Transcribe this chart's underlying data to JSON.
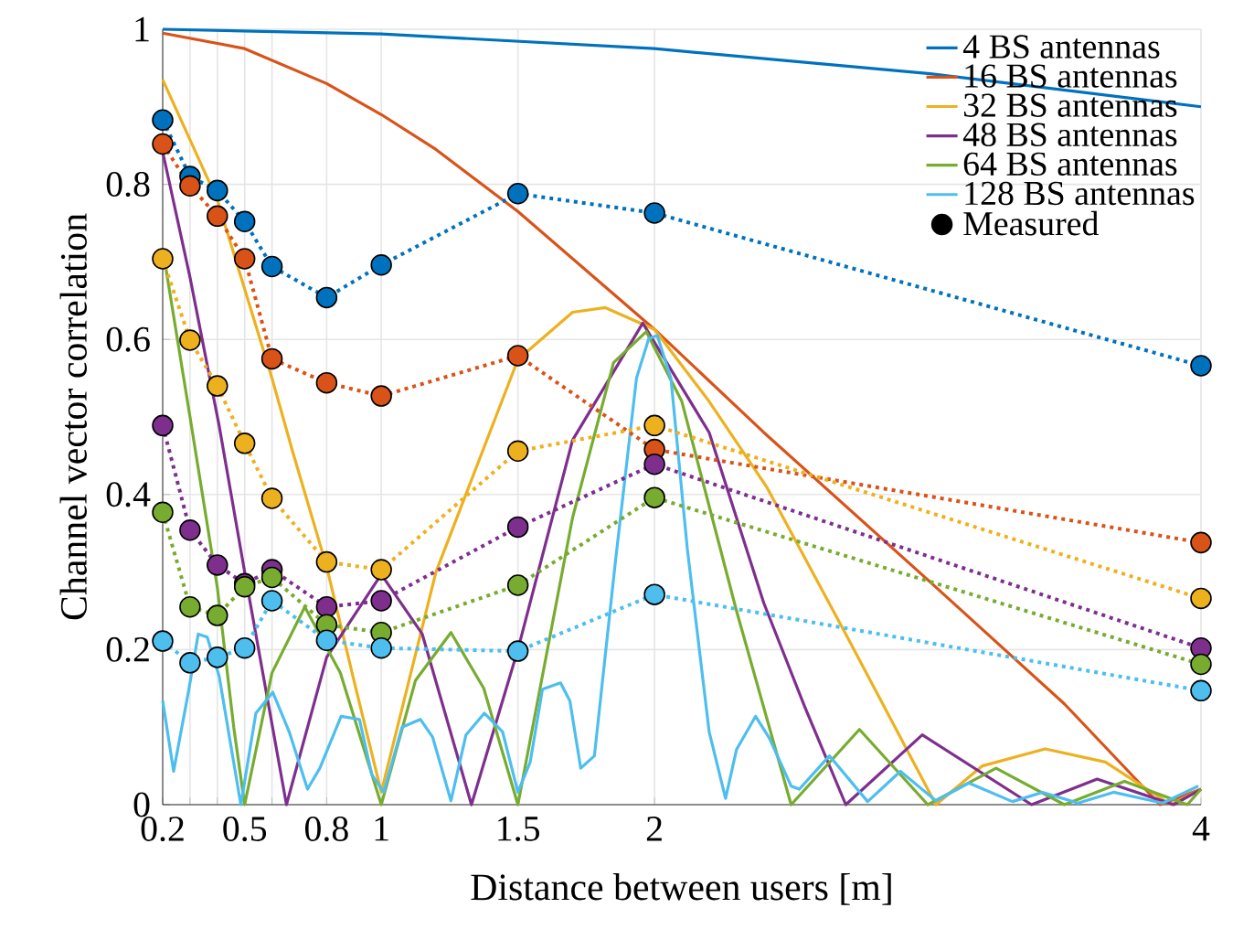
{
  "chart_data": {
    "type": "line",
    "xlabel": "Distance between users [m]",
    "ylabel": "Channel vector correlation",
    "xlim": [
      0.2,
      4
    ],
    "ylim": [
      0,
      1
    ],
    "xticks": [
      0.2,
      {
        "value": 0.3,
        "label": null
      },
      {
        "value": 0.4,
        "label": null
      },
      0.5,
      {
        "value": 0.6,
        "label": null
      },
      0.8,
      1,
      1.5,
      2,
      4
    ],
    "yticks": [
      0,
      0.2,
      0.4,
      0.6,
      0.8,
      1
    ],
    "grid": true,
    "legend": "top right",
    "series": [
      {
        "name": "4 BS antennas",
        "color": "#0072bd",
        "line_style": "solid",
        "marker": "none",
        "x": [
          0.2,
          1,
          2,
          3,
          4
        ],
        "values": [
          1.0,
          0.994,
          0.975,
          0.943,
          0.9
        ]
      },
      {
        "name": "16 BS antennas",
        "color": "#d95319",
        "line_style": "solid",
        "marker": "none",
        "x": [
          0.2,
          0.5,
          0.8,
          1.0,
          1.2,
          1.5,
          2,
          2.4,
          3,
          3.5,
          3.85,
          4
        ],
        "values": [
          0.995,
          0.975,
          0.93,
          0.89,
          0.845,
          0.765,
          0.613,
          0.48,
          0.29,
          0.13,
          0.0,
          0.02
        ]
      },
      {
        "name": "32 BS antennas",
        "color": "#edb120",
        "line_style": "solid",
        "marker": "none",
        "x": [
          0.2,
          0.4,
          0.6,
          0.675,
          0.8,
          0.9,
          1.0,
          1.2,
          1.5,
          1.7,
          1.82,
          2.0,
          2.2,
          2.41,
          2.7,
          3.03,
          3.2,
          3.43,
          3.65,
          3.89,
          4
        ],
        "values": [
          0.935,
          0.78,
          0.55,
          0.456,
          0.307,
          0.16,
          0.016,
          0.3,
          0.574,
          0.635,
          0.641,
          0.613,
          0.52,
          0.41,
          0.22,
          0.0,
          0.05,
          0.072,
          0.055,
          0.0,
          0.02
        ]
      },
      {
        "name": "48 BS antennas",
        "color": "#7e2f8e",
        "line_style": "solid",
        "marker": "none",
        "x": [
          0.2,
          0.3,
          0.407,
          0.5,
          0.653,
          0.8,
          1.0,
          1.15,
          1.33,
          1.5,
          1.7,
          1.957,
          2.2,
          2.4,
          2.55,
          2.7,
          2.98,
          3.38,
          3.62,
          3.9,
          4
        ],
        "values": [
          0.842,
          0.68,
          0.488,
          0.3,
          0.0,
          0.19,
          0.297,
          0.22,
          0.0,
          0.2,
          0.47,
          0.621,
          0.48,
          0.26,
          0.126,
          0.0,
          0.09,
          0.0,
          0.033,
          0.0,
          0.02
        ]
      },
      {
        "name": "64 BS antennas",
        "color": "#77ac30",
        "line_style": "solid",
        "marker": "none",
        "x": [
          0.2,
          0.3,
          0.4,
          0.46,
          0.5,
          0.6,
          0.72,
          0.85,
          1.0,
          1.125,
          1.255,
          1.375,
          1.5,
          1.7,
          1.85,
          1.97,
          2.1,
          2.3,
          2.5,
          2.75,
          3.0,
          3.25,
          3.5,
          3.72,
          3.95,
          4
        ],
        "values": [
          0.717,
          0.5,
          0.28,
          0.1,
          0.0,
          0.17,
          0.255,
          0.17,
          0.0,
          0.16,
          0.222,
          0.15,
          0.0,
          0.37,
          0.57,
          0.61,
          0.52,
          0.25,
          0.0,
          0.097,
          0.0,
          0.047,
          0.0,
          0.03,
          0.0,
          0.02
        ]
      },
      {
        "name": "128 BS antennas",
        "color": "#4dbeee",
        "line_style": "solid",
        "marker": "none",
        "x": [
          0.2,
          0.24,
          0.296,
          0.33,
          0.363,
          0.407,
          0.486,
          0.541,
          0.603,
          0.663,
          0.73,
          0.775,
          0.853,
          0.92,
          0.965,
          1.009,
          1.076,
          1.143,
          1.188,
          1.255,
          1.31,
          1.377,
          1.444,
          1.5,
          1.545,
          1.59,
          1.656,
          1.69,
          1.73,
          1.78,
          1.857,
          1.934,
          1.979,
          2.01,
          2.06,
          2.12,
          2.2,
          2.26,
          2.3,
          2.37,
          2.42,
          2.5,
          2.53,
          2.64,
          2.78,
          2.9,
          3.03,
          3.15,
          3.31,
          3.42,
          3.55,
          3.68,
          3.86,
          3.99
        ],
        "values": [
          0.134,
          0.043,
          0.149,
          0.22,
          0.216,
          0.165,
          0.0,
          0.118,
          0.145,
          0.094,
          0.02,
          0.047,
          0.114,
          0.11,
          0.039,
          0.016,
          0.1,
          0.11,
          0.087,
          0.005,
          0.09,
          0.118,
          0.094,
          0.016,
          0.055,
          0.149,
          0.157,
          0.134,
          0.047,
          0.063,
          0.314,
          0.55,
          0.601,
          0.605,
          0.55,
          0.33,
          0.094,
          0.008,
          0.071,
          0.114,
          0.086,
          0.024,
          0.02,
          0.063,
          0.004,
          0.043,
          0.005,
          0.028,
          0.004,
          0.016,
          0.002,
          0.016,
          0.002,
          0.024
        ]
      },
      {
        "color": "#0072bd",
        "line_style": "dotted",
        "marker": "circle",
        "x": [
          0.2,
          0.3,
          0.4,
          0.5,
          0.6,
          0.8,
          1,
          1.5,
          2,
          4
        ],
        "values": [
          0.883,
          0.81,
          0.792,
          0.752,
          0.694,
          0.654,
          0.696,
          0.788,
          0.763,
          0.566
        ]
      },
      {
        "color": "#d95319",
        "line_style": "dotted",
        "marker": "circle",
        "x": [
          0.2,
          0.3,
          0.4,
          0.5,
          0.6,
          0.8,
          1,
          1.5,
          2,
          4
        ],
        "values": [
          0.852,
          0.798,
          0.759,
          0.704,
          0.575,
          0.544,
          0.527,
          0.579,
          0.458,
          0.338
        ]
      },
      {
        "color": "#edb120",
        "line_style": "dotted",
        "marker": "circle",
        "x": [
          0.2,
          0.3,
          0.4,
          0.5,
          0.6,
          0.8,
          1,
          1.5,
          2,
          4
        ],
        "values": [
          0.704,
          0.599,
          0.54,
          0.466,
          0.395,
          0.313,
          0.303,
          0.456,
          0.489,
          0.266
        ]
      },
      {
        "color": "#7e2f8e",
        "line_style": "dotted",
        "marker": "circle",
        "x": [
          0.2,
          0.3,
          0.4,
          0.5,
          0.6,
          0.8,
          1,
          1.5,
          2,
          4
        ],
        "values": [
          0.489,
          0.354,
          0.309,
          0.285,
          0.303,
          0.255,
          0.263,
          0.358,
          0.439,
          0.202
        ]
      },
      {
        "color": "#77ac30",
        "line_style": "dotted",
        "marker": "circle",
        "x": [
          0.2,
          0.3,
          0.4,
          0.5,
          0.6,
          0.8,
          1,
          1.5,
          2,
          4
        ],
        "values": [
          0.377,
          0.255,
          0.244,
          0.281,
          0.293,
          0.232,
          0.222,
          0.283,
          0.396,
          0.181
        ]
      },
      {
        "color": "#4dbeee",
        "line_style": "dotted",
        "marker": "circle",
        "x": [
          0.2,
          0.3,
          0.4,
          0.5,
          0.6,
          0.8,
          1,
          1.5,
          2,
          4
        ],
        "values": [
          0.211,
          0.183,
          0.19,
          0.202,
          0.263,
          0.212,
          0.202,
          0.198,
          0.271,
          0.147
        ]
      },
      {
        "name": "Measured",
        "color": "#000000",
        "type": "scatter",
        "marker": "circle"
      }
    ]
  }
}
